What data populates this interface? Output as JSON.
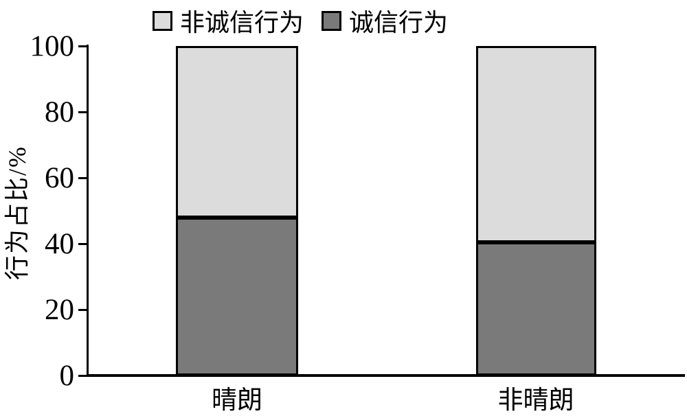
{
  "chart_data": {
    "type": "bar",
    "subtype": "stacked-percentage",
    "categories": [
      "晴朗",
      "非晴朗"
    ],
    "series": [
      {
        "name": "诚信行为",
        "color": "#7A7A7A",
        "values": [
          48,
          40.5
        ]
      },
      {
        "name": "非诚信行为",
        "color": "#DCDCDC",
        "values": [
          52,
          59.5
        ]
      }
    ],
    "title": "",
    "xlabel": "",
    "ylabel": "行为占比/%",
    "ylim": [
      0,
      100
    ],
    "yticks": [
      0,
      20,
      40,
      60,
      80,
      100
    ],
    "grid": false,
    "legend_position": "top"
  },
  "legend": {
    "items": [
      {
        "label": "非诚信行为",
        "color": "#DCDCDC"
      },
      {
        "label": "诚信行为",
        "color": "#7A7A7A"
      }
    ]
  },
  "colors": {
    "bar_light": "#DCDCDC",
    "bar_dark": "#7A7A7A",
    "axis": "#000000",
    "background": "#FFFFFF"
  }
}
